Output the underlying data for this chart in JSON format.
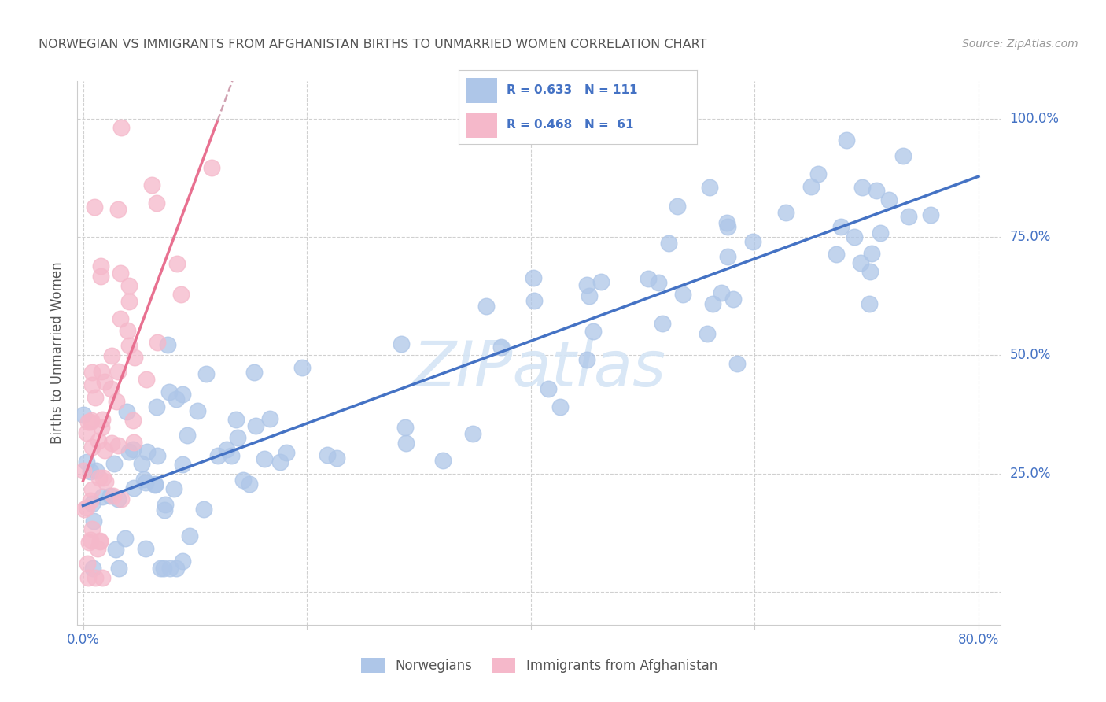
{
  "title": "NORWEGIAN VS IMMIGRANTS FROM AFGHANISTAN BIRTHS TO UNMARRIED WOMEN CORRELATION CHART",
  "source": "Source: ZipAtlas.com",
  "ylabel": "Births to Unmarried Women",
  "r1": 0.633,
  "n1": 111,
  "r2": 0.468,
  "n2": 61,
  "blue_fill": "#aec6e8",
  "blue_edge": "#aec6e8",
  "blue_line": "#4472c4",
  "pink_fill": "#f5b8ca",
  "pink_edge": "#f5b8ca",
  "pink_line": "#e87090",
  "axis_label_color": "#4472c4",
  "ylabel_color": "#555555",
  "title_color": "#555555",
  "source_color": "#999999",
  "grid_color": "#d0d0d0",
  "watermark_color": "#d5e5f5",
  "legend_label1": "Norwegians",
  "legend_label2": "Immigrants from Afghanistan",
  "xlim": [
    -0.005,
    0.82
  ],
  "ylim": [
    -0.07,
    1.08
  ]
}
